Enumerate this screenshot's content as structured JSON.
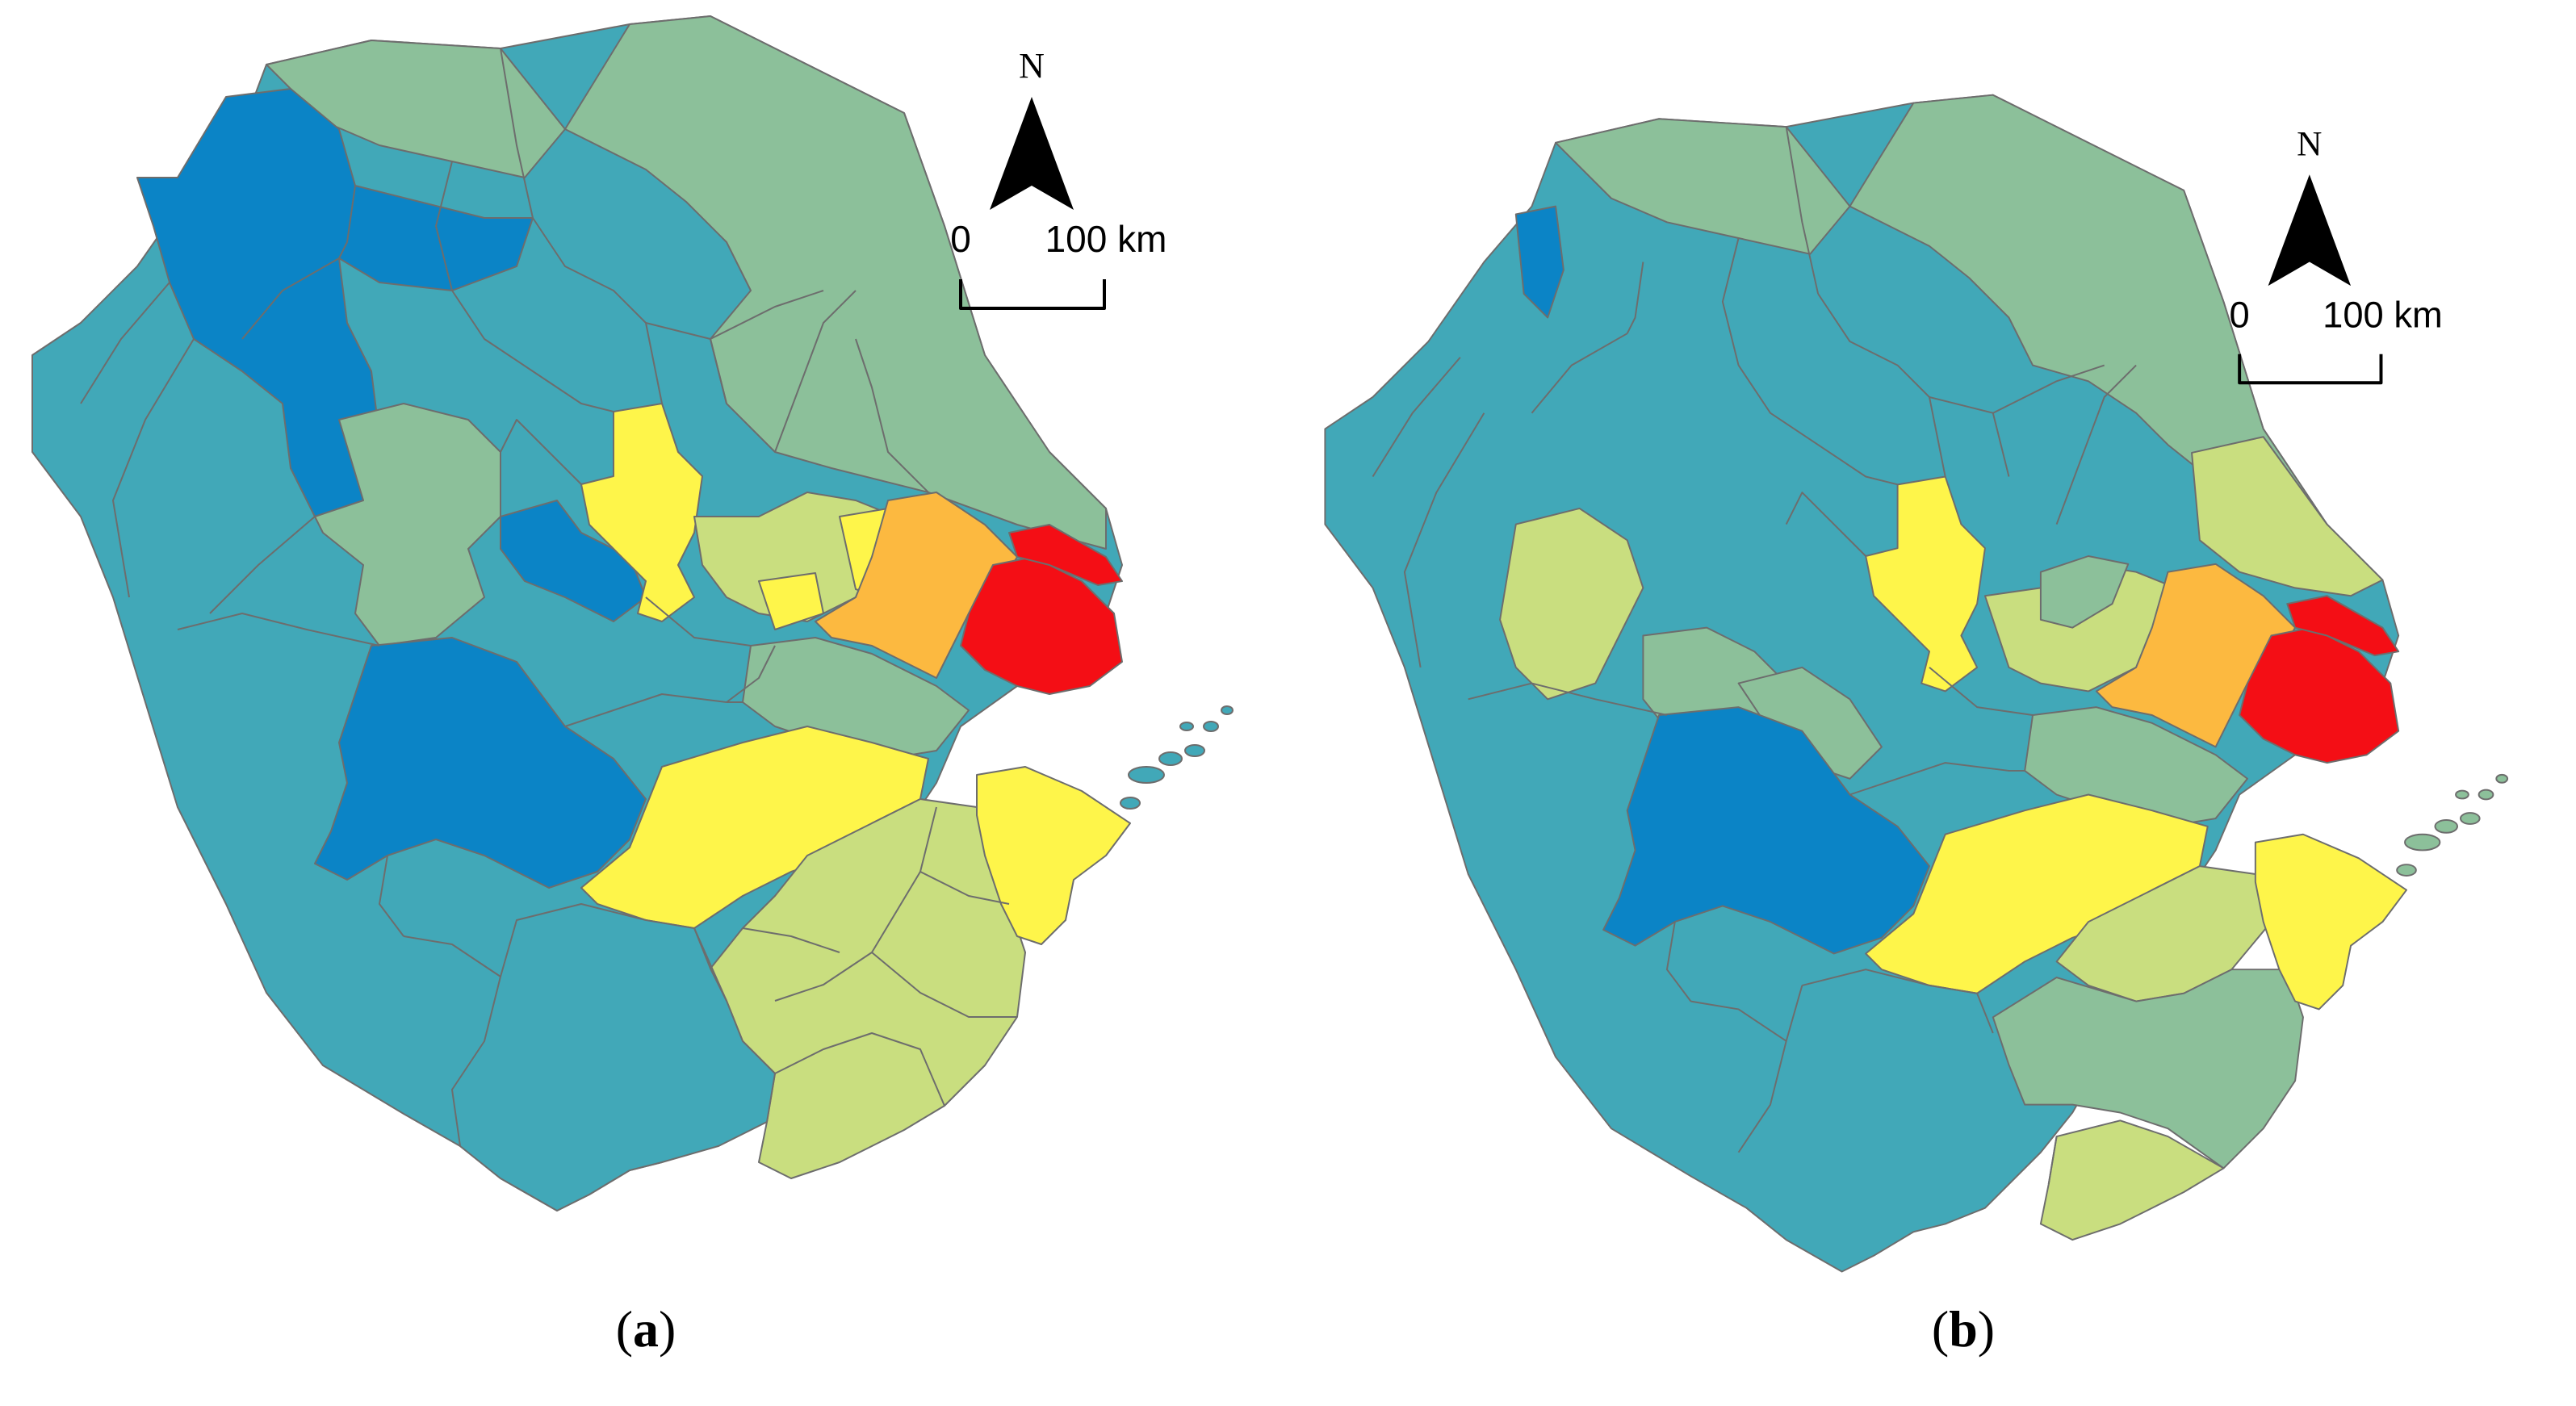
{
  "panels": [
    {
      "id": "a",
      "caption_open": "(",
      "caption_letter": "a",
      "caption_close": ")",
      "north_label": "N",
      "scale_start": "0",
      "scale_end": "100 km"
    },
    {
      "id": "b",
      "caption_open": "(",
      "caption_letter": "b",
      "caption_close": ")",
      "north_label": "N",
      "scale_start": "0",
      "scale_end": "100 km"
    }
  ],
  "colors": {
    "blue": "#0b84c6",
    "teal": "#41a8b8",
    "sage": "#8cc09a",
    "light_green": "#c9de7f",
    "yellow": "#fef54a",
    "orange": "#fcb940",
    "red": "#f40e15",
    "border": "#6d6d6d"
  }
}
